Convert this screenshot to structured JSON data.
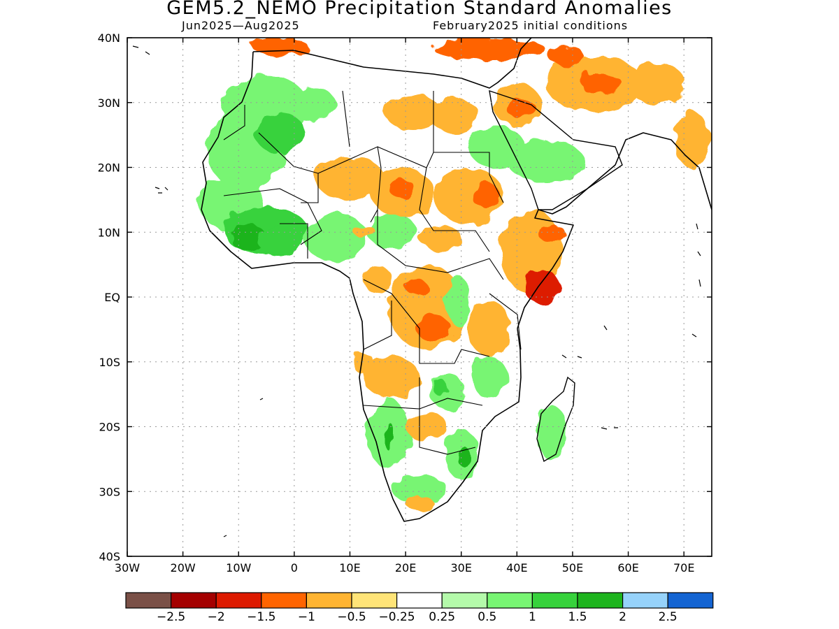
{
  "title": "GEM5.2_NEMO Precipitation Standard Anomalies",
  "period": "Jun2025—Aug2025",
  "initial_conditions": "February2025 initial conditions",
  "map": {
    "lat_labels": [
      "40N",
      "30N",
      "20N",
      "10N",
      "EQ",
      "10S",
      "20S",
      "30S",
      "40S"
    ],
    "lon_labels": [
      "30W",
      "20W",
      "10W",
      "0",
      "10E",
      "20E",
      "30E",
      "40E",
      "50E",
      "60E",
      "70E"
    ],
    "lon_range": [
      -30,
      75
    ],
    "lat_range": [
      -40,
      40
    ]
  },
  "colorbar": {
    "colors": [
      "#7a5047",
      "#a40000",
      "#dd1a00",
      "#ff6400",
      "#ffb432",
      "#ffe478",
      "#ffffff",
      "#b4faaa",
      "#78f573",
      "#37d23c",
      "#1eb41e",
      "#96d2fa",
      "#1464d2"
    ],
    "labels": [
      "−2.5",
      "−2",
      "−1.5",
      "−1",
      "−0.5",
      "−0.25",
      "0.25",
      "0.5",
      "1",
      "1.5",
      "2",
      "2.5"
    ]
  }
}
